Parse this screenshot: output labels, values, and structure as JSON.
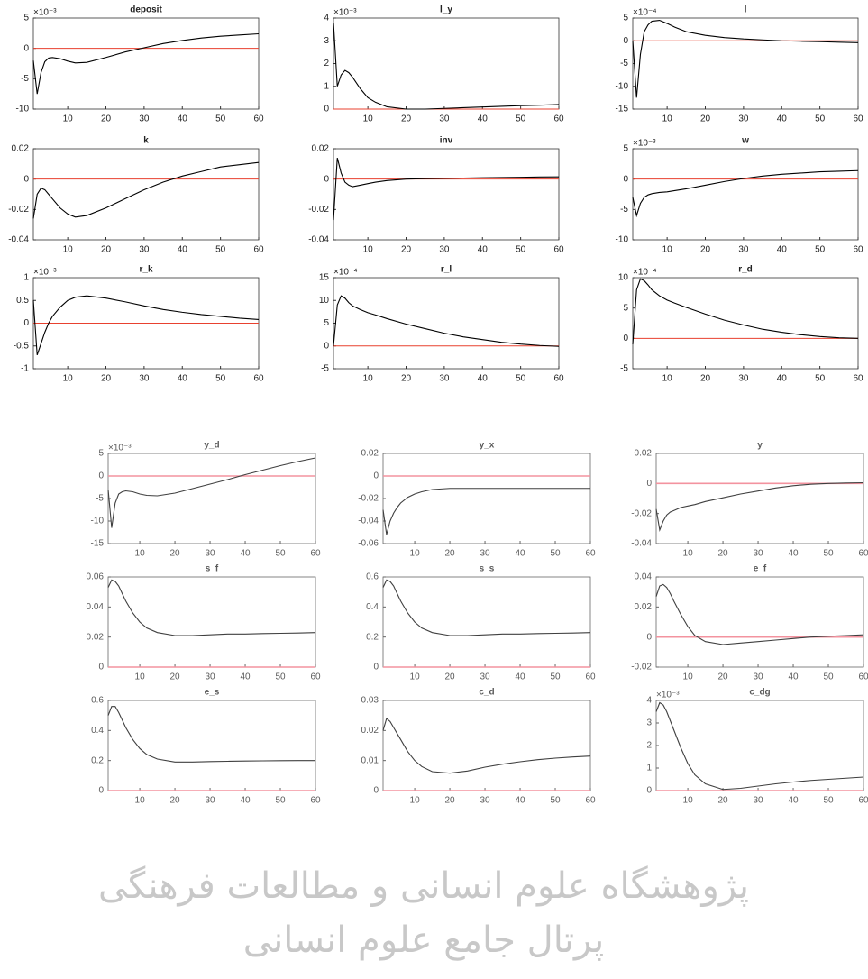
{
  "chart_data": [
    {
      "type": "line",
      "title": "deposit",
      "exponent": "×10⁻³",
      "x": [
        1,
        2,
        3,
        4,
        5,
        6,
        8,
        10,
        12,
        15,
        20,
        25,
        30,
        35,
        40,
        45,
        50,
        55,
        60
      ],
      "values": [
        -2,
        -7.5,
        -4,
        -2.2,
        -1.6,
        -1.5,
        -1.7,
        -2.1,
        -2.4,
        -2.3,
        -1.5,
        -0.6,
        0.1,
        0.8,
        1.3,
        1.7,
        2.0,
        2.2,
        2.4
      ],
      "color": "#000000",
      "hline": 0,
      "hline_color": "#e8412f",
      "xlim": [
        1,
        60
      ],
      "xticks": [
        10,
        20,
        30,
        40,
        50,
        60
      ],
      "ylim": [
        -10,
        5
      ],
      "yticks": [
        -10,
        -5,
        0,
        5
      ]
    },
    {
      "type": "line",
      "title": "l_y",
      "exponent": "×10⁻³",
      "x": [
        1,
        2,
        3,
        4,
        5,
        6,
        8,
        10,
        12,
        15,
        20,
        25,
        30,
        35,
        40,
        45,
        50,
        55,
        60
      ],
      "values": [
        3.8,
        1.0,
        1.5,
        1.7,
        1.6,
        1.4,
        0.9,
        0.5,
        0.3,
        0.1,
        0,
        0,
        0.03,
        0.06,
        0.09,
        0.12,
        0.15,
        0.17,
        0.2
      ],
      "color": "#000000",
      "hline": 0,
      "hline_color": "#e8412f",
      "xlim": [
        1,
        60
      ],
      "xticks": [
        10,
        20,
        30,
        40,
        50,
        60
      ],
      "ylim": [
        0,
        4
      ],
      "yticks": [
        0,
        1,
        2,
        3,
        4
      ]
    },
    {
      "type": "line",
      "title": "l",
      "exponent": "×10⁻⁴",
      "x": [
        1,
        2,
        3,
        4,
        5,
        6,
        8,
        10,
        12,
        15,
        20,
        25,
        30,
        35,
        40,
        45,
        50,
        55,
        60
      ],
      "values": [
        0,
        -12.5,
        -3,
        2,
        3.5,
        4.3,
        4.5,
        3.8,
        3,
        2,
        1.2,
        0.7,
        0.4,
        0.2,
        0,
        -0.1,
        -0.2,
        -0.3,
        -0.4
      ],
      "color": "#000000",
      "hline": 0,
      "hline_color": "#e8412f",
      "xlim": [
        1,
        60
      ],
      "xticks": [
        10,
        20,
        30,
        40,
        50,
        60
      ],
      "ylim": [
        -15,
        5
      ],
      "yticks": [
        -15,
        -10,
        -5,
        0,
        5
      ]
    },
    {
      "type": "line",
      "title": "k",
      "x": [
        1,
        2,
        3,
        4,
        5,
        6,
        8,
        10,
        12,
        15,
        20,
        25,
        30,
        35,
        40,
        45,
        50,
        55,
        60
      ],
      "values": [
        -0.026,
        -0.01,
        -0.006,
        -0.007,
        -0.01,
        -0.013,
        -0.019,
        -0.023,
        -0.025,
        -0.024,
        -0.019,
        -0.013,
        -0.007,
        -0.002,
        0.002,
        0.005,
        0.008,
        0.0095,
        0.011
      ],
      "color": "#000000",
      "hline": 0,
      "hline_color": "#e8412f",
      "xlim": [
        1,
        60
      ],
      "xticks": [
        10,
        20,
        30,
        40,
        50,
        60
      ],
      "ylim": [
        -0.04,
        0.02
      ],
      "yticks": [
        -0.04,
        -0.02,
        0,
        0.02
      ]
    },
    {
      "type": "line",
      "title": "inv",
      "x": [
        1,
        2,
        3,
        4,
        5,
        6,
        8,
        10,
        12,
        15,
        20,
        25,
        30,
        35,
        40,
        45,
        50,
        55,
        60
      ],
      "values": [
        -0.027,
        0.014,
        0.004,
        -0.002,
        -0.004,
        -0.005,
        -0.004,
        -0.003,
        -0.002,
        -0.001,
        0,
        0.0003,
        0.0005,
        0.0007,
        0.0009,
        0.001,
        0.0012,
        0.0014,
        0.0015
      ],
      "color": "#000000",
      "hline": 0,
      "hline_color": "#e8412f",
      "xlim": [
        1,
        60
      ],
      "xticks": [
        10,
        20,
        30,
        40,
        50,
        60
      ],
      "ylim": [
        -0.04,
        0.02
      ],
      "yticks": [
        -0.04,
        -0.02,
        0,
        0.02
      ]
    },
    {
      "type": "line",
      "title": "w",
      "exponent": "×10⁻³",
      "x": [
        1,
        2,
        3,
        4,
        5,
        6,
        8,
        10,
        12,
        15,
        20,
        25,
        30,
        35,
        40,
        45,
        50,
        55,
        60
      ],
      "values": [
        -3,
        -6,
        -4,
        -3,
        -2.6,
        -2.4,
        -2.2,
        -2.1,
        -1.9,
        -1.6,
        -1.0,
        -0.4,
        0.1,
        0.5,
        0.8,
        1.0,
        1.2,
        1.3,
        1.4
      ],
      "color": "#000000",
      "hline": 0,
      "hline_color": "#e8412f",
      "xlim": [
        1,
        60
      ],
      "xticks": [
        10,
        20,
        30,
        40,
        50,
        60
      ],
      "ylim": [
        -10,
        5
      ],
      "yticks": [
        -10,
        -5,
        0,
        5
      ]
    },
    {
      "type": "line",
      "title": "r_k",
      "exponent": "×10⁻³",
      "x": [
        1,
        2,
        3,
        4,
        5,
        6,
        8,
        10,
        12,
        15,
        20,
        25,
        30,
        35,
        40,
        45,
        50,
        55,
        60
      ],
      "values": [
        0.5,
        -0.7,
        -0.45,
        -0.2,
        0,
        0.15,
        0.35,
        0.5,
        0.57,
        0.6,
        0.55,
        0.47,
        0.38,
        0.3,
        0.24,
        0.19,
        0.15,
        0.11,
        0.08
      ],
      "color": "#000000",
      "hline": 0,
      "hline_color": "#e8412f",
      "xlim": [
        1,
        60
      ],
      "xticks": [
        10,
        20,
        30,
        40,
        50,
        60
      ],
      "ylim": [
        -1,
        1
      ],
      "yticks": [
        -1,
        -0.5,
        0,
        0.5,
        1
      ]
    },
    {
      "type": "line",
      "title": "r_l",
      "exponent": "×10⁻⁴",
      "x": [
        1,
        2,
        3,
        4,
        5,
        6,
        8,
        10,
        12,
        15,
        20,
        25,
        30,
        35,
        40,
        45,
        50,
        55,
        60
      ],
      "values": [
        0,
        9,
        11,
        10.5,
        9.5,
        8.8,
        8,
        7.3,
        6.8,
        6,
        4.8,
        3.8,
        2.8,
        2,
        1.4,
        0.8,
        0.4,
        0.1,
        -0.1
      ],
      "color": "#000000",
      "hline": 0,
      "hline_color": "#e8412f",
      "xlim": [
        1,
        60
      ],
      "xticks": [
        10,
        20,
        30,
        40,
        50,
        60
      ],
      "ylim": [
        -5,
        15
      ],
      "yticks": [
        -5,
        0,
        5,
        10,
        15
      ]
    },
    {
      "type": "line",
      "title": "r_d",
      "exponent": "×10⁻⁴",
      "x": [
        1,
        2,
        3,
        4,
        5,
        6,
        8,
        10,
        12,
        15,
        20,
        25,
        30,
        35,
        40,
        45,
        50,
        55,
        60
      ],
      "values": [
        -1,
        8,
        9.8,
        9.5,
        8.8,
        8,
        7,
        6.3,
        5.8,
        5.1,
        4.0,
        3.0,
        2.2,
        1.5,
        1.0,
        0.6,
        0.3,
        0.1,
        0
      ],
      "color": "#000000",
      "hline": 0,
      "hline_color": "#e8412f",
      "xlim": [
        1,
        60
      ],
      "xticks": [
        10,
        20,
        30,
        40,
        50,
        60
      ],
      "ylim": [
        -5,
        10
      ],
      "yticks": [
        -5,
        0,
        5,
        10
      ]
    },
    {
      "type": "line",
      "title": "y_d",
      "exponent": "×10⁻³",
      "x": [
        1,
        2,
        3,
        4,
        5,
        6,
        8,
        10,
        12,
        15,
        20,
        25,
        30,
        35,
        40,
        45,
        50,
        55,
        60
      ],
      "values": [
        -3,
        -11.5,
        -6,
        -4,
        -3.5,
        -3.3,
        -3.5,
        -4,
        -4.3,
        -4.4,
        -3.8,
        -2.8,
        -1.8,
        -0.8,
        0.3,
        1.3,
        2.3,
        3.2,
        4
      ],
      "color": "#000000",
      "hline": 0,
      "hline_color": "#f07080",
      "xlim": [
        1,
        60
      ],
      "xticks": [
        10,
        20,
        30,
        40,
        50,
        60
      ],
      "ylim": [
        -15,
        5
      ],
      "yticks": [
        -15,
        -10,
        -5,
        0,
        5
      ]
    },
    {
      "type": "line",
      "title": "y_x",
      "x": [
        1,
        2,
        3,
        4,
        5,
        6,
        8,
        10,
        12,
        15,
        20,
        25,
        30,
        35,
        40,
        45,
        50,
        55,
        60
      ],
      "values": [
        -0.03,
        -0.052,
        -0.04,
        -0.033,
        -0.028,
        -0.024,
        -0.019,
        -0.016,
        -0.014,
        -0.012,
        -0.011,
        -0.011,
        -0.011,
        -0.011,
        -0.011,
        -0.011,
        -0.011,
        -0.011,
        -0.011
      ],
      "color": "#000000",
      "hline": 0,
      "hline_color": "#f07080",
      "xlim": [
        1,
        60
      ],
      "xticks": [
        10,
        20,
        30,
        40,
        50,
        60
      ],
      "ylim": [
        -0.06,
        0.02
      ],
      "yticks": [
        -0.06,
        -0.04,
        -0.02,
        0,
        0.02
      ]
    },
    {
      "type": "line",
      "title": "y",
      "x": [
        1,
        2,
        3,
        4,
        5,
        6,
        8,
        10,
        12,
        15,
        20,
        25,
        30,
        35,
        40,
        45,
        50,
        55,
        60
      ],
      "values": [
        -0.017,
        -0.031,
        -0.025,
        -0.021,
        -0.019,
        -0.018,
        -0.016,
        -0.015,
        -0.014,
        -0.012,
        -0.0095,
        -0.007,
        -0.005,
        -0.003,
        -0.0015,
        -0.0005,
        0,
        0.0003,
        0.0005
      ],
      "color": "#000000",
      "hline": 0,
      "hline_color": "#f07080",
      "xlim": [
        1,
        60
      ],
      "xticks": [
        10,
        20,
        30,
        40,
        50,
        60
      ],
      "ylim": [
        -0.04,
        0.02
      ],
      "yticks": [
        -0.04,
        -0.02,
        0,
        0.02
      ]
    },
    {
      "type": "line",
      "title": "s_f",
      "x": [
        1,
        2,
        3,
        4,
        5,
        6,
        8,
        10,
        12,
        15,
        20,
        25,
        30,
        35,
        40,
        45,
        50,
        55,
        60
      ],
      "values": [
        0.053,
        0.058,
        0.057,
        0.054,
        0.049,
        0.044,
        0.036,
        0.03,
        0.026,
        0.023,
        0.021,
        0.021,
        0.0215,
        0.022,
        0.022,
        0.0223,
        0.0225,
        0.0227,
        0.023
      ],
      "color": "#000000",
      "hline": 0,
      "hline_color": "#f07080",
      "xlim": [
        1,
        60
      ],
      "xticks": [
        10,
        20,
        30,
        40,
        50,
        60
      ],
      "ylim": [
        0,
        0.06
      ],
      "yticks": [
        0,
        0.02,
        0.04,
        0.06
      ]
    },
    {
      "type": "line",
      "title": "s_s",
      "x": [
        1,
        2,
        3,
        4,
        5,
        6,
        8,
        10,
        12,
        15,
        20,
        25,
        30,
        35,
        40,
        45,
        50,
        55,
        60
      ],
      "values": [
        0.53,
        0.58,
        0.57,
        0.54,
        0.49,
        0.44,
        0.36,
        0.3,
        0.26,
        0.23,
        0.21,
        0.21,
        0.215,
        0.22,
        0.22,
        0.223,
        0.225,
        0.227,
        0.23
      ],
      "color": "#000000",
      "hline": 0,
      "hline_color": "#f07080",
      "xlim": [
        1,
        60
      ],
      "xticks": [
        10,
        20,
        30,
        40,
        50,
        60
      ],
      "ylim": [
        0,
        0.6
      ],
      "yticks": [
        0,
        0.2,
        0.4,
        0.6
      ]
    },
    {
      "type": "line",
      "title": "e_f",
      "x": [
        1,
        2,
        3,
        4,
        5,
        6,
        8,
        10,
        12,
        15,
        20,
        25,
        30,
        35,
        40,
        45,
        50,
        55,
        60
      ],
      "values": [
        0.027,
        0.034,
        0.035,
        0.033,
        0.029,
        0.024,
        0.015,
        0.007,
        0.001,
        -0.003,
        -0.005,
        -0.004,
        -0.003,
        -0.002,
        -0.001,
        0,
        0.0005,
        0.001,
        0.0015
      ],
      "color": "#000000",
      "hline": 0,
      "hline_color": "#f07080",
      "xlim": [
        1,
        60
      ],
      "xticks": [
        10,
        20,
        30,
        40,
        50,
        60
      ],
      "ylim": [
        -0.02,
        0.04
      ],
      "yticks": [
        -0.02,
        0,
        0.02,
        0.04
      ]
    },
    {
      "type": "line",
      "title": "e_s",
      "x": [
        1,
        2,
        3,
        4,
        5,
        6,
        8,
        10,
        12,
        15,
        20,
        25,
        30,
        35,
        40,
        45,
        50,
        55,
        60
      ],
      "values": [
        0.5,
        0.56,
        0.56,
        0.52,
        0.47,
        0.42,
        0.34,
        0.28,
        0.24,
        0.21,
        0.19,
        0.19,
        0.193,
        0.195,
        0.197,
        0.198,
        0.199,
        0.2,
        0.2
      ],
      "color": "#000000",
      "hline": 0,
      "hline_color": "#f07080",
      "xlim": [
        1,
        60
      ],
      "xticks": [
        10,
        20,
        30,
        40,
        50,
        60
      ],
      "ylim": [
        0,
        0.6
      ],
      "yticks": [
        0,
        0.2,
        0.4,
        0.6
      ]
    },
    {
      "type": "line",
      "title": "c_d",
      "x": [
        1,
        2,
        3,
        4,
        5,
        6,
        8,
        10,
        12,
        15,
        20,
        25,
        30,
        35,
        40,
        45,
        50,
        55,
        60
      ],
      "values": [
        0.02,
        0.024,
        0.023,
        0.021,
        0.019,
        0.017,
        0.013,
        0.01,
        0.008,
        0.0063,
        0.0058,
        0.0065,
        0.0078,
        0.0088,
        0.0096,
        0.0103,
        0.0108,
        0.0112,
        0.0115
      ],
      "color": "#000000",
      "hline": 0,
      "hline_color": "#f07080",
      "xlim": [
        1,
        60
      ],
      "xticks": [
        10,
        20,
        30,
        40,
        50,
        60
      ],
      "ylim": [
        0,
        0.03
      ],
      "yticks": [
        0,
        0.01,
        0.02,
        0.03
      ]
    },
    {
      "type": "line",
      "title": "c_dg",
      "exponent": "×10⁻³",
      "x": [
        1,
        2,
        3,
        4,
        5,
        6,
        8,
        10,
        12,
        15,
        20,
        25,
        30,
        35,
        40,
        45,
        50,
        55,
        60
      ],
      "values": [
        3.5,
        3.9,
        3.8,
        3.5,
        3.1,
        2.7,
        1.9,
        1.2,
        0.7,
        0.3,
        0.05,
        0.1,
        0.2,
        0.3,
        0.38,
        0.45,
        0.5,
        0.55,
        0.6
      ],
      "color": "#000000",
      "hline": 0,
      "hline_color": "#f07080",
      "xlim": [
        1,
        60
      ],
      "xticks": [
        10,
        20,
        30,
        40,
        50,
        60
      ],
      "ylim": [
        0,
        4
      ],
      "yticks": [
        0,
        1,
        2,
        3,
        4
      ]
    }
  ],
  "watermark": [
    "پژوهشگاه علوم انسانی و مطالعات فرهنگی",
    "پرتال جامع علوم انسانی"
  ]
}
